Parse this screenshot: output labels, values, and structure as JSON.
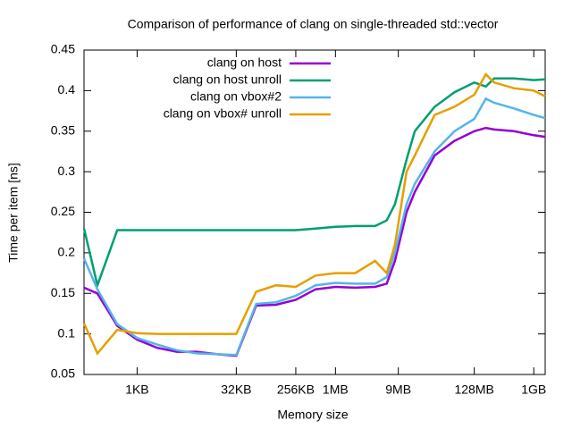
{
  "chart_data": {
    "type": "line",
    "title": "Comparison of performance of clang on single-threaded std::vector",
    "x_label": "Memory size",
    "y_label": "Time per item [ns]",
    "xscale": "log",
    "legend": "top-left",
    "xlim": [
      160,
      1600000000
    ],
    "ylim": [
      0.05,
      0.45
    ],
    "xticks": [
      {
        "value": 1024,
        "label": "1KB"
      },
      {
        "value": 32768,
        "label": "32KB"
      },
      {
        "value": 262144,
        "label": "256KB"
      },
      {
        "value": 1048576,
        "label": "1MB"
      },
      {
        "value": 9437184,
        "label": "9MB"
      },
      {
        "value": 134217728,
        "label": "128MB"
      },
      {
        "value": 1073741824,
        "label": "1GB"
      }
    ],
    "yticks": [
      0.05,
      0.1,
      0.15,
      0.2,
      0.25,
      0.3,
      0.35,
      0.4,
      0.45
    ],
    "x": [
      160,
      256,
      512,
      1024,
      2048,
      4096,
      8192,
      16384,
      32768,
      65536,
      131072,
      262144,
      524288,
      1048576,
      2097152,
      4194304,
      6291456,
      8388608,
      12582912,
      16777216,
      33554432,
      67108864,
      134217728,
      201326592,
      268435456,
      536870912,
      1073741824,
      1600000000
    ],
    "series": [
      {
        "name": "clang on host",
        "color": "#9400d3",
        "values": [
          0.157,
          0.15,
          0.11,
          0.093,
          0.083,
          0.078,
          0.078,
          0.075,
          0.073,
          0.135,
          0.136,
          0.142,
          0.155,
          0.158,
          0.157,
          0.158,
          0.162,
          0.19,
          0.25,
          0.275,
          0.32,
          0.338,
          0.35,
          0.354,
          0.352,
          0.35,
          0.345,
          0.343
        ]
      },
      {
        "name": "clang on host unroll",
        "color": "#009e73",
        "values": [
          0.23,
          0.16,
          0.228,
          0.228,
          0.228,
          0.228,
          0.228,
          0.228,
          0.228,
          0.228,
          0.228,
          0.228,
          0.23,
          0.232,
          0.233,
          0.233,
          0.24,
          0.26,
          0.315,
          0.35,
          0.38,
          0.398,
          0.41,
          0.405,
          0.415,
          0.415,
          0.413,
          0.414
        ]
      },
      {
        "name": "clang on vbox#2",
        "color": "#56b4e9",
        "values": [
          0.193,
          0.155,
          0.112,
          0.095,
          0.087,
          0.08,
          0.076,
          0.075,
          0.074,
          0.137,
          0.139,
          0.147,
          0.16,
          0.163,
          0.162,
          0.162,
          0.17,
          0.2,
          0.26,
          0.285,
          0.325,
          0.35,
          0.365,
          0.39,
          0.385,
          0.378,
          0.37,
          0.366
        ]
      },
      {
        "name": "clang on vbox# unroll",
        "color": "#e69f00",
        "values": [
          0.113,
          0.076,
          0.105,
          0.101,
          0.1,
          0.1,
          0.1,
          0.1,
          0.1,
          0.152,
          0.16,
          0.158,
          0.172,
          0.175,
          0.175,
          0.19,
          0.175,
          0.21,
          0.3,
          0.32,
          0.37,
          0.38,
          0.395,
          0.42,
          0.41,
          0.403,
          0.4,
          0.393
        ]
      }
    ]
  }
}
